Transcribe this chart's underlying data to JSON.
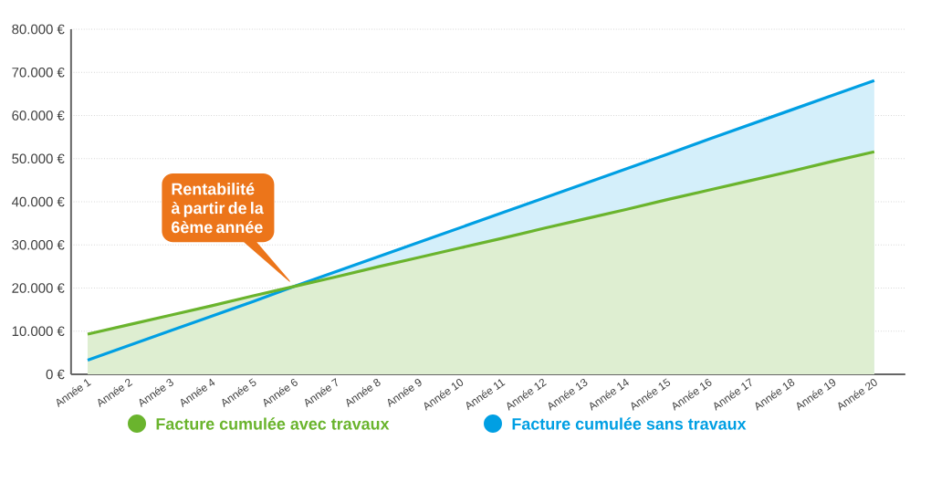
{
  "chart_data": {
    "type": "area",
    "categories": [
      "Année 1",
      "Année 2",
      "Année 3",
      "Année 4",
      "Année 5",
      "Année 6",
      "Année 7",
      "Année 8",
      "Année 9",
      "Année 10",
      "Année 11",
      "Année 12",
      "Année 13",
      "Année 14",
      "Année 15",
      "Année 16",
      "Année 17",
      "Année 18",
      "Année 19",
      "Année 20"
    ],
    "series": [
      {
        "name": "Facture cumulée sans travaux",
        "color": "#009fe3",
        "values": [
          3300,
          6700,
          10100,
          13500,
          16900,
          20400,
          23800,
          27200,
          30600,
          34000,
          37400,
          40800,
          44200,
          47600,
          51000,
          54500,
          57900,
          61300,
          64700,
          68100
        ]
      },
      {
        "name": "Facture cumulée avec travaux",
        "color": "#6ab42d",
        "values": [
          9300,
          11500,
          13700,
          15900,
          18200,
          20400,
          22600,
          24900,
          27100,
          29300,
          31500,
          33800,
          36000,
          38200,
          40500,
          42700,
          44900,
          47100,
          49400,
          51600
        ]
      }
    ],
    "ylim": [
      0,
      80000
    ],
    "yticks": [
      {
        "value": 0,
        "label": "0 €"
      },
      {
        "value": 10000,
        "label": "10.000 €"
      },
      {
        "value": 20000,
        "label": "20.000 €"
      },
      {
        "value": 30000,
        "label": "30.000 €"
      },
      {
        "value": 40000,
        "label": "40.000 €"
      },
      {
        "value": 50000,
        "label": "50.000 €"
      },
      {
        "value": 60000,
        "label": "60.000 €"
      },
      {
        "value": 70000,
        "label": "70.000 €"
      },
      {
        "value": 80000,
        "label": "80.000 €"
      }
    ],
    "grid": "y",
    "legend": "bottom",
    "marker": "none",
    "annotations": [
      "Rentabilité à partir de la 6ème année"
    ]
  }
}
